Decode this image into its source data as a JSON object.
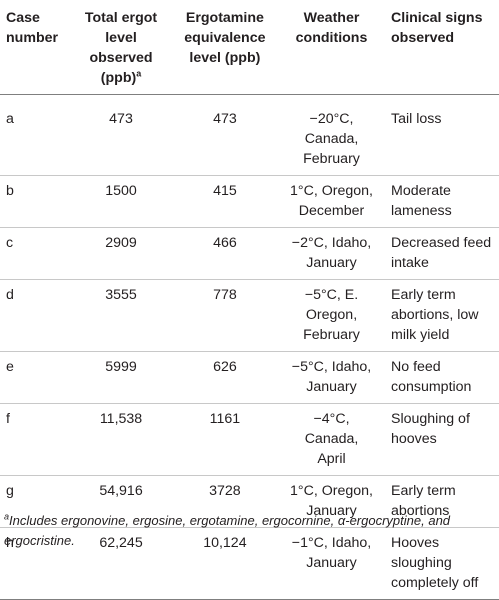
{
  "table": {
    "headers": {
      "case": [
        "Case",
        "number"
      ],
      "total": [
        "Total ergot",
        "level",
        "observed",
        "(ppb)"
      ],
      "total_sup": "a",
      "ergotamine": [
        "Ergotamine",
        "equivalence",
        "level (ppb)"
      ],
      "weather": [
        "Weather",
        "conditions"
      ],
      "signs": [
        "Clinical signs",
        "observed"
      ]
    },
    "rows": [
      {
        "case": "a",
        "total": "473",
        "ergotamine": "473",
        "weather": [
          "−20°C, Canada,",
          "February"
        ],
        "signs": [
          "Tail loss"
        ]
      },
      {
        "case": "b",
        "total": "1500",
        "ergotamine": "415",
        "weather": [
          "1°C, Oregon,",
          "December"
        ],
        "signs": [
          "Moderate",
          "lameness"
        ]
      },
      {
        "case": "c",
        "total": "2909",
        "ergotamine": "466",
        "weather": [
          "−2°C, Idaho,",
          "January"
        ],
        "signs": [
          "Decreased feed",
          "intake"
        ]
      },
      {
        "case": "d",
        "total": "3555",
        "ergotamine": "778",
        "weather": [
          "−5°C, E.",
          "Oregon,",
          "February"
        ],
        "signs": [
          "Early term",
          "abortions, low",
          "milk yield"
        ]
      },
      {
        "case": "e",
        "total": "5999",
        "ergotamine": "626",
        "weather": [
          "−5°C, Idaho,",
          "January"
        ],
        "signs": [
          "No feed",
          "consumption"
        ]
      },
      {
        "case": "f",
        "total": "11,538",
        "ergotamine": "1161",
        "weather": [
          "−4°C, Canada,",
          "April"
        ],
        "signs": [
          "Sloughing of",
          "hooves"
        ]
      },
      {
        "case": "g",
        "total": "54,916",
        "ergotamine": "3728",
        "weather": [
          "1°C, Oregon,",
          "January"
        ],
        "signs": [
          "Early term",
          "abortions"
        ]
      },
      {
        "case": "h",
        "total": "62,245",
        "ergotamine": "10,124",
        "weather": [
          "−1°C, Idaho,",
          "January"
        ],
        "signs": [
          "Hooves",
          "sloughing",
          "completely off"
        ]
      }
    ]
  },
  "footnote": {
    "marker": "a",
    "lines": [
      "Includes ergonovine, ergosine, ergotamine, ergocornine, α-ergocryptine, and",
      "ergocristine."
    ]
  }
}
